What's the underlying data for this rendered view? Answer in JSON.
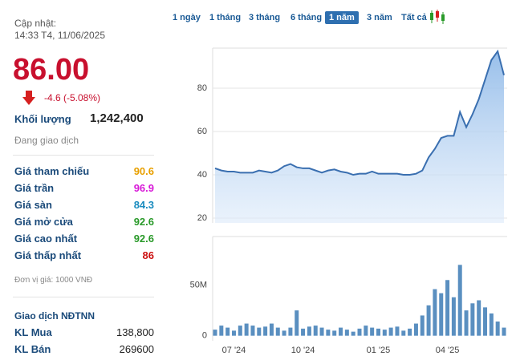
{
  "header": {
    "update_label": "Cập nhật:",
    "update_time": "14:33 T4, 11/06/2025",
    "price": "86.00",
    "change": "-4.6 (-5.08%)",
    "volume_label": "Khối lượng",
    "volume": "1,242,400",
    "status": "Đang giao dịch"
  },
  "prices": {
    "rows": [
      {
        "label": "Giá tham chiếu",
        "value": "90.6",
        "color": "#e8a000"
      },
      {
        "label": "Giá trần",
        "value": "96.9",
        "color": "#d81ad8"
      },
      {
        "label": "Giá sàn",
        "value": "84.3",
        "color": "#1a8cbf"
      },
      {
        "label": "Giá mở cửa",
        "value": "92.6",
        "color": "#2a9a2a"
      },
      {
        "label": "Giá cao nhất",
        "value": "92.6",
        "color": "#2a9a2a"
      },
      {
        "label": "Giá thấp nhất",
        "value": "86",
        "color": "#cc1111"
      }
    ],
    "unit": "Đơn vị giá: 1000 VNĐ"
  },
  "foreign": {
    "title": "Giao dịch NĐTNN",
    "rows": [
      {
        "label": "KL Mua",
        "value": "138,800"
      },
      {
        "label": "KL Bán",
        "value": "269600"
      }
    ]
  },
  "tabs": {
    "items": [
      "1 ngày",
      "1 tháng",
      "3 tháng",
      "6 tháng",
      "1 năm",
      "3 năm",
      "Tất cả"
    ],
    "active": 4
  },
  "chart_data": [
    {
      "type": "area",
      "color": "#3a6fb0",
      "fill": "#a9c8ec",
      "grid": true,
      "ylim": [
        17.8,
        98.5
      ],
      "yticks": [
        20,
        40,
        60,
        80
      ],
      "values": [
        43,
        42,
        41.5,
        41.5,
        41,
        41,
        41,
        42,
        41.5,
        41,
        42,
        44,
        45,
        43.5,
        43,
        43,
        42,
        41,
        42,
        42.5,
        41.5,
        41,
        40,
        40.5,
        40.5,
        41.5,
        40.5,
        40.5,
        40.5,
        40.5,
        40,
        40,
        40.5,
        42,
        48,
        52,
        57,
        58,
        58,
        69,
        62,
        68,
        75,
        84,
        93,
        97,
        86
      ]
    },
    {
      "type": "bar",
      "color": "#5a8fc0",
      "ylim": [
        -5000000,
        98000000
      ],
      "yticks": [
        0,
        {
          "value": 50000000,
          "label": "50M"
        }
      ],
      "categories": [
        null,
        null,
        null,
        "07 '24",
        null,
        null,
        null,
        null,
        null,
        null,
        null,
        null,
        null,
        null,
        "10 '24",
        null,
        null,
        null,
        null,
        null,
        null,
        null,
        null,
        null,
        null,
        null,
        "01 '25",
        null,
        null,
        null,
        null,
        null,
        null,
        null,
        null,
        null,
        null,
        "04 '25",
        null,
        null,
        null,
        null,
        null,
        null,
        null,
        null,
        null
      ],
      "values": [
        6000000,
        10000000,
        8000000,
        5000000,
        10000000,
        12000000,
        10000000,
        8000000,
        9000000,
        12000000,
        8000000,
        5000000,
        8000000,
        25000000,
        7000000,
        9000000,
        10000000,
        8000000,
        6000000,
        5000000,
        8000000,
        6000000,
        4000000,
        7000000,
        10000000,
        8000000,
        7000000,
        6000000,
        8000000,
        9000000,
        5000000,
        7000000,
        12000000,
        20000000,
        30000000,
        46000000,
        42000000,
        55000000,
        38000000,
        70000000,
        25000000,
        32000000,
        35000000,
        28000000,
        22000000,
        14000000,
        8000000
      ]
    }
  ]
}
